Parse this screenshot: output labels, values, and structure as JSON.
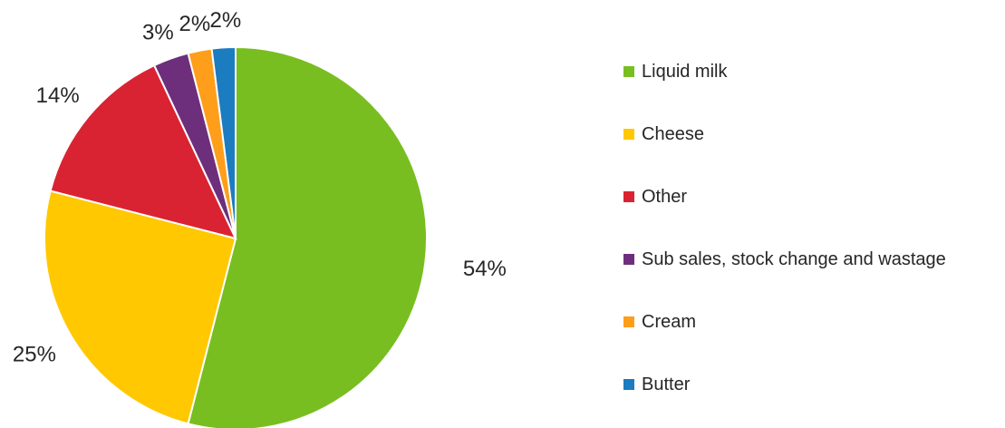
{
  "chart_data": {
    "type": "pie",
    "title": "",
    "legend_position": "right",
    "start_angle_deg": 0,
    "direction": "clockwise",
    "slices": [
      {
        "label": "Liquid milk",
        "value": 54,
        "display": "54%",
        "color": "#78BE20"
      },
      {
        "label": "Cheese",
        "value": 25,
        "display": "25%",
        "color": "#FFC800"
      },
      {
        "label": "Other",
        "value": 14,
        "display": "14%",
        "color": "#DA2332"
      },
      {
        "label": "Sub sales, stock change and wastage",
        "value": 3,
        "display": "3%",
        "color": "#6D2F7C"
      },
      {
        "label": "Cream",
        "value": 2,
        "display": "2%",
        "color": "#FF9E1B"
      },
      {
        "label": "Butter",
        "value": 2,
        "display": "2%",
        "color": "#1B7CC0"
      }
    ]
  }
}
